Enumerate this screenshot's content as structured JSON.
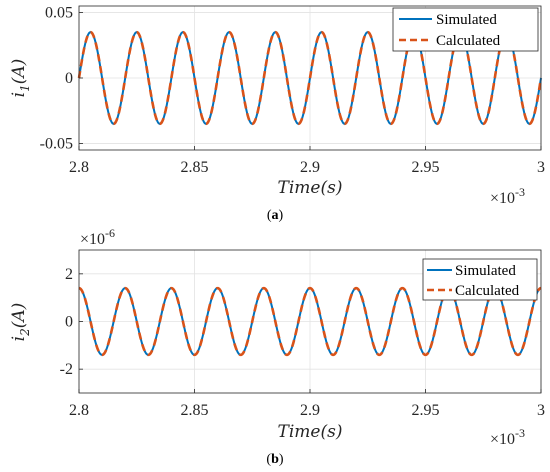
{
  "chart_data": [
    {
      "type": "line",
      "caption_paren_open": "(",
      "caption_letter": "a",
      "caption_paren_close": ")",
      "xlabel": "Time(s)",
      "ylabel": "i1(A)",
      "ylabel_main": "i",
      "ylabel_sub": "1",
      "ylabel_rest": "(A)",
      "x_exponent_base": "×10",
      "x_exponent_power": "-3",
      "xlim": [
        2.8,
        3.0
      ],
      "ylim": [
        -0.055,
        0.055
      ],
      "x_ticks": [
        "2.8",
        "2.85",
        "2.9",
        "2.95",
        "3"
      ],
      "y_ticks": [
        "-0.05",
        "0",
        "0.05"
      ],
      "y_tick_values": [
        -0.05,
        0,
        0.05
      ],
      "x_tick_values": [
        2.8,
        2.85,
        2.9,
        2.95,
        3.0
      ],
      "grid": true,
      "legend_position": "top-right",
      "signal": {
        "amplitude": 0.035,
        "period": 0.02,
        "phase_at_start": 0.0,
        "waveform": "sine"
      },
      "series": [
        {
          "name": "Simulated",
          "color": "#0072BD",
          "style": "solid"
        },
        {
          "name": "Calculated",
          "color": "#D95319",
          "style": "dashed"
        }
      ]
    },
    {
      "type": "line",
      "caption_paren_open": "(",
      "caption_letter": "b",
      "caption_paren_close": ")",
      "xlabel": "Time(s)",
      "ylabel": "i2(A)",
      "ylabel_main": "i",
      "ylabel_sub": "2",
      "ylabel_rest": "(A)",
      "x_exponent_base": "×10",
      "x_exponent_power": "-3",
      "y_exponent_base": "×10",
      "y_exponent_power": "-6",
      "xlim": [
        2.8,
        3.0
      ],
      "ylim": [
        -3.0,
        3.0
      ],
      "x_ticks": [
        "2.8",
        "2.85",
        "2.9",
        "2.95",
        "3"
      ],
      "y_ticks": [
        "-2",
        "0",
        "2"
      ],
      "y_tick_values": [
        -2,
        0,
        2
      ],
      "x_tick_values": [
        2.8,
        2.85,
        2.9,
        2.95,
        3.0
      ],
      "grid": true,
      "legend_position": "top-right",
      "signal": {
        "amplitude": 1.4,
        "period": 0.02,
        "phase_at_start": 1.5708,
        "waveform": "sine"
      },
      "series": [
        {
          "name": "Simulated",
          "color": "#0072BD",
          "style": "solid"
        },
        {
          "name": "Calculated",
          "color": "#D95319",
          "style": "dashed"
        }
      ]
    }
  ]
}
